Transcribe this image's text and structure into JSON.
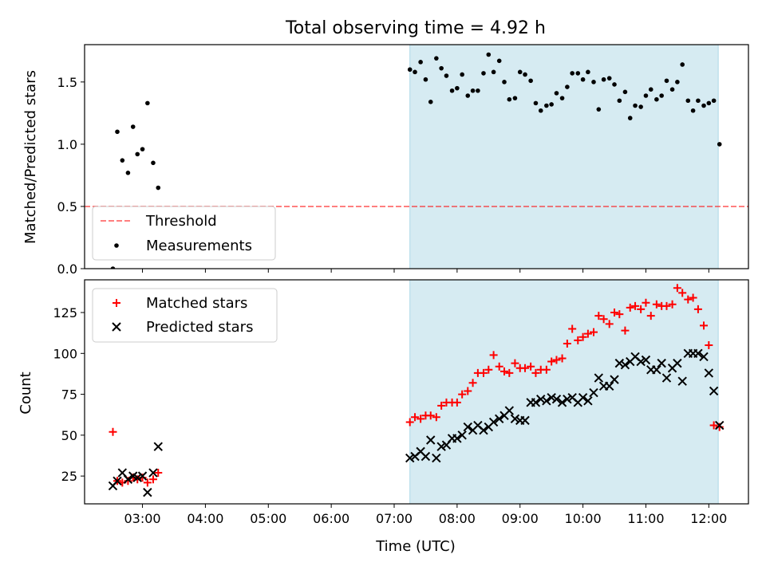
{
  "title": "Total observing time = 4.92 h",
  "colors": {
    "shade": "#add8e6",
    "threshold": "#ff0000",
    "measurement": "#000000",
    "matched": "#ff0000",
    "predicted": "#000000"
  },
  "chart_data": [
    {
      "type": "scatter",
      "ylabel": "Matched/Predicted stars",
      "xlim": [
        2.08,
        12.63
      ],
      "ylim": [
        0,
        1.8
      ],
      "yticks": [
        0.0,
        0.5,
        1.0,
        1.5
      ],
      "ytick_labels": [
        "0.0",
        "0.5",
        "1.0",
        "1.5"
      ],
      "shaded_span": [
        7.25,
        12.15
      ],
      "threshold": {
        "name": "Threshold",
        "value": 0.5,
        "style": "dashed"
      },
      "legend_position": "lower-left",
      "series": [
        {
          "name": "Measurements",
          "marker": "dot",
          "x": [
            2.53,
            2.6,
            2.68,
            2.77,
            2.85,
            2.92,
            3.0,
            3.08,
            3.17,
            3.25,
            7.25,
            7.33,
            7.42,
            7.5,
            7.58,
            7.67,
            7.75,
            7.83,
            7.92,
            8.0,
            8.08,
            8.17,
            8.25,
            8.33,
            8.42,
            8.5,
            8.58,
            8.67,
            8.75,
            8.83,
            8.92,
            9.0,
            9.08,
            9.17,
            9.25,
            9.33,
            9.42,
            9.5,
            9.58,
            9.67,
            9.75,
            9.83,
            9.92,
            10.0,
            10.08,
            10.17,
            10.25,
            10.33,
            10.42,
            10.5,
            10.58,
            10.67,
            10.75,
            10.83,
            10.92,
            11.0,
            11.08,
            11.17,
            11.25,
            11.33,
            11.42,
            11.5,
            11.58,
            11.67,
            11.75,
            11.83,
            11.92,
            12.0,
            12.08,
            12.17
          ],
          "y": [
            0.0,
            1.1,
            0.87,
            0.77,
            1.14,
            0.92,
            0.96,
            1.33,
            0.85,
            0.65,
            1.6,
            1.58,
            1.66,
            1.52,
            1.34,
            1.69,
            1.61,
            1.55,
            1.43,
            1.45,
            1.56,
            1.39,
            1.43,
            1.43,
            1.57,
            1.72,
            1.58,
            1.67,
            1.5,
            1.36,
            1.37,
            1.58,
            1.56,
            1.51,
            1.33,
            1.27,
            1.31,
            1.32,
            1.41,
            1.37,
            1.46,
            1.57,
            1.57,
            1.52,
            1.58,
            1.5,
            1.28,
            1.52,
            1.53,
            1.48,
            1.35,
            1.42,
            1.21,
            1.31,
            1.3,
            1.39,
            1.44,
            1.36,
            1.39,
            1.51,
            1.44,
            1.5,
            1.64,
            1.35,
            1.27,
            1.35,
            1.31,
            1.33,
            1.35,
            1.0
          ]
        }
      ]
    },
    {
      "type": "scatter",
      "ylabel": "Count",
      "xlabel": "Time (UTC)",
      "xlim": [
        2.08,
        12.63
      ],
      "ylim": [
        8,
        145
      ],
      "yticks": [
        25,
        50,
        75,
        100,
        125
      ],
      "ytick_labels": [
        "25",
        "50",
        "75",
        "100",
        "125"
      ],
      "xticks": [
        3,
        4,
        5,
        6,
        7,
        8,
        9,
        10,
        11,
        12
      ],
      "xtick_labels": [
        "03:00",
        "04:00",
        "05:00",
        "06:00",
        "07:00",
        "08:00",
        "09:00",
        "10:00",
        "11:00",
        "12:00"
      ],
      "shaded_span": [
        7.25,
        12.15
      ],
      "legend_position": "upper-left",
      "series": [
        {
          "name": "Matched stars",
          "marker": "plus",
          "x": [
            2.53,
            2.6,
            2.68,
            2.77,
            2.85,
            2.92,
            3.0,
            3.08,
            3.17,
            3.25,
            7.25,
            7.33,
            7.42,
            7.5,
            7.58,
            7.67,
            7.75,
            7.83,
            7.92,
            8.0,
            8.08,
            8.17,
            8.25,
            8.33,
            8.42,
            8.5,
            8.58,
            8.67,
            8.75,
            8.83,
            8.92,
            9.0,
            9.08,
            9.17,
            9.25,
            9.33,
            9.42,
            9.5,
            9.58,
            9.67,
            9.75,
            9.83,
            9.92,
            10.0,
            10.08,
            10.17,
            10.25,
            10.33,
            10.42,
            10.5,
            10.58,
            10.67,
            10.75,
            10.83,
            10.92,
            11.0,
            11.08,
            11.17,
            11.25,
            11.33,
            11.42,
            11.5,
            11.58,
            11.67,
            11.75,
            11.83,
            11.92,
            12.0,
            12.08,
            12.17
          ],
          "y": [
            52,
            22,
            21,
            22,
            24,
            23,
            24,
            21,
            23,
            27,
            58,
            61,
            60,
            62,
            62,
            61,
            68,
            70,
            70,
            70,
            75,
            77,
            82,
            88,
            88,
            90,
            99,
            92,
            89,
            88,
            94,
            91,
            91,
            92,
            88,
            90,
            90,
            95,
            96,
            97,
            106,
            115,
            108,
            110,
            112,
            113,
            123,
            121,
            118,
            125,
            124,
            114,
            128,
            129,
            127,
            131,
            123,
            130,
            129,
            129,
            130,
            140,
            137,
            133,
            134,
            127,
            117,
            105,
            56,
            55
          ]
        },
        {
          "name": "Predicted stars",
          "marker": "x",
          "x": [
            2.53,
            2.6,
            2.68,
            2.77,
            2.85,
            2.92,
            3.0,
            3.08,
            3.17,
            3.25,
            7.25,
            7.33,
            7.42,
            7.5,
            7.58,
            7.67,
            7.75,
            7.83,
            7.92,
            8.0,
            8.08,
            8.17,
            8.25,
            8.33,
            8.42,
            8.5,
            8.58,
            8.67,
            8.75,
            8.83,
            8.92,
            9.0,
            9.08,
            9.17,
            9.25,
            9.33,
            9.42,
            9.5,
            9.58,
            9.67,
            9.75,
            9.83,
            9.92,
            10.0,
            10.08,
            10.17,
            10.25,
            10.33,
            10.42,
            10.5,
            10.58,
            10.67,
            10.75,
            10.83,
            10.92,
            11.0,
            11.08,
            11.17,
            11.25,
            11.33,
            11.42,
            11.5,
            11.58,
            11.67,
            11.75,
            11.83,
            11.92,
            12.0,
            12.08,
            12.17
          ],
          "y": [
            19,
            22,
            27,
            23,
            25,
            24,
            25,
            15,
            27,
            43,
            36,
            37,
            40,
            37,
            47,
            36,
            43,
            44,
            48,
            48,
            50,
            55,
            53,
            56,
            53,
            55,
            58,
            60,
            62,
            65,
            60,
            59,
            59,
            70,
            70,
            72,
            71,
            73,
            72,
            70,
            72,
            73,
            70,
            73,
            71,
            76,
            85,
            80,
            80,
            84,
            94,
            93,
            95,
            98,
            95,
            96,
            90,
            90,
            94,
            85,
            91,
            94,
            83,
            100,
            100,
            100,
            98,
            88,
            77,
            56
          ]
        }
      ]
    }
  ]
}
